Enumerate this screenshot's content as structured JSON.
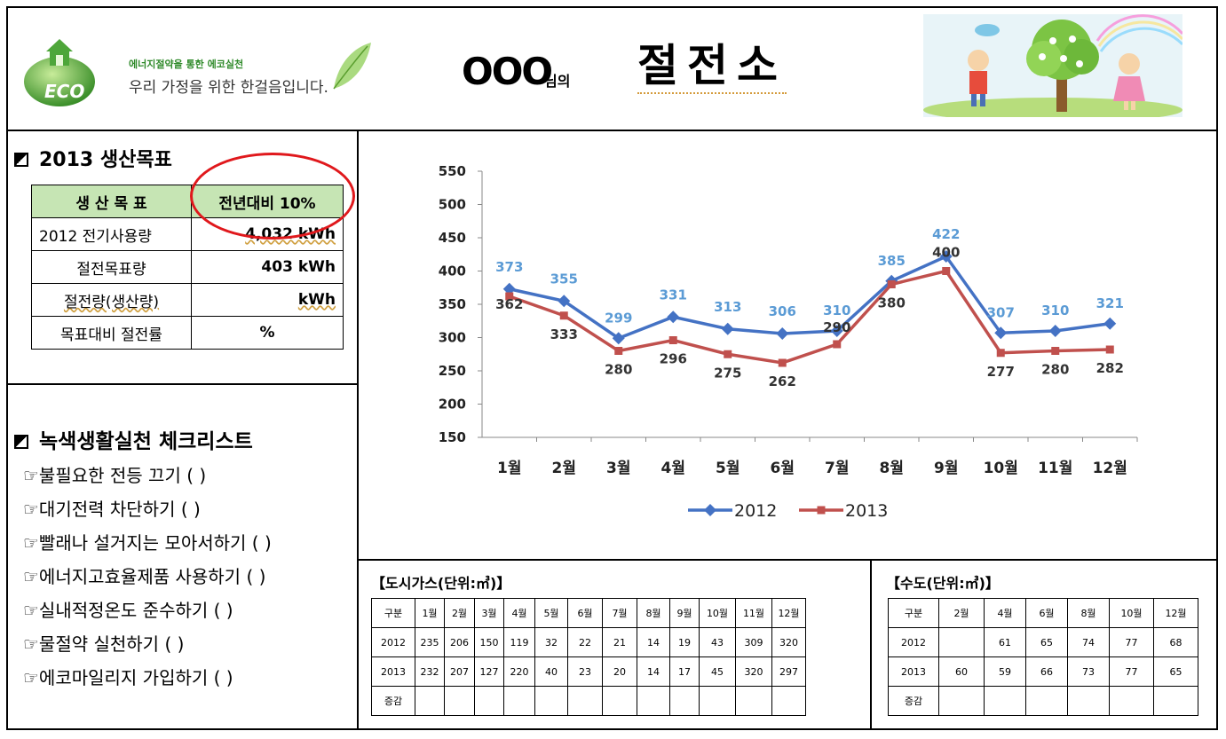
{
  "header": {
    "logo_text": "ECO",
    "slogan_small": "에너지절약을 통한 에코실천",
    "slogan_main": "우리 가정을 위한 한걸음입니다.",
    "title_who": "OOO",
    "title_nim": "님의",
    "title_main": "절전소"
  },
  "goal": {
    "section_title": "2013 생산목표",
    "header_left": "생 산 목 표",
    "header_right": "전년대비 10%",
    "rows": [
      {
        "label": "2012 전기사용량",
        "value": "4,032 kWh"
      },
      {
        "label": "절전목표량",
        "value": "403 kWh"
      },
      {
        "label": "절전량(생산량)",
        "value": "kWh"
      },
      {
        "label": "목표대비 절전률",
        "value": "%"
      }
    ]
  },
  "checklist": {
    "section_title": "녹색생활실천 체크리스트",
    "items": [
      "☞불필요한 전등 끄기 (    )",
      "☞대기전력 차단하기  (    )",
      "☞빨래나 설거지는 모아서하기 (   )",
      "☞에너지고효율제품 사용하기 (   )",
      "☞실내적정온도 준수하기 (    )",
      "☞물절약 실천하기 (    )",
      "☞에코마일리지 가입하기 (    )"
    ]
  },
  "chart_data": {
    "type": "line",
    "categories": [
      "1월",
      "2월",
      "3월",
      "4월",
      "5월",
      "6월",
      "7월",
      "8월",
      "9월",
      "10월",
      "11월",
      "12월"
    ],
    "series": [
      {
        "name": "2012",
        "color": "#4472c4",
        "label_color": "#5b9bd5",
        "marker": "diamond",
        "values": [
          373,
          355,
          299,
          331,
          313,
          306,
          310,
          385,
          422,
          307,
          310,
          321
        ]
      },
      {
        "name": "2013",
        "color": "#c0504d",
        "label_color": "#333333",
        "marker": "square",
        "values": [
          362,
          333,
          280,
          296,
          275,
          262,
          290,
          380,
          400,
          277,
          280,
          282
        ]
      }
    ],
    "ylim": [
      150,
      550
    ],
    "yticks": [
      150,
      200,
      250,
      300,
      350,
      400,
      450,
      500,
      550
    ],
    "grid": false,
    "legend": "bottom",
    "title": "",
    "xlabel": "",
    "ylabel": ""
  },
  "gas": {
    "title": "【도시가스(단위:㎥)】",
    "columns": [
      "구분",
      "1월",
      "2월",
      "3월",
      "4월",
      "5월",
      "6월",
      "7월",
      "8월",
      "9월",
      "10월",
      "11월",
      "12월"
    ],
    "rows": [
      [
        "2012",
        "235",
        "206",
        "150",
        "119",
        "32",
        "22",
        "21",
        "14",
        "19",
        "43",
        "309",
        "320"
      ],
      [
        "2013",
        "232",
        "207",
        "127",
        "220",
        "40",
        "23",
        "20",
        "14",
        "17",
        "45",
        "320",
        "297"
      ],
      [
        "증감",
        "",
        "",
        "",
        "",
        "",
        "",
        "",
        "",
        "",
        "",
        "",
        ""
      ]
    ]
  },
  "water": {
    "title": "【수도(단위:㎥)】",
    "columns": [
      "구분",
      "2월",
      "4월",
      "6월",
      "8월",
      "10월",
      "12월"
    ],
    "rows": [
      [
        "2012",
        "",
        "61",
        "65",
        "74",
        "77",
        "68"
      ],
      [
        "2013",
        "60",
        "59",
        "66",
        "73",
        "77",
        "65"
      ],
      [
        "증감",
        "",
        "",
        "",
        "",
        "",
        ""
      ]
    ]
  }
}
